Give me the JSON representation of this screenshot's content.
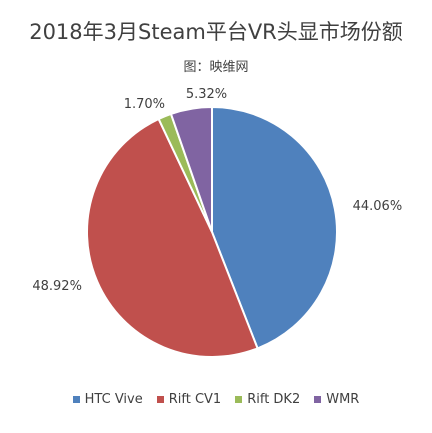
{
  "chart_data": {
    "type": "pie",
    "title": "2018年3月Steam平台VR头显市场份额",
    "subtitle": "图：映维网",
    "categories": [
      "HTC Vive",
      "Rift CV1",
      "Rift DK2",
      "WMR"
    ],
    "values": [
      44.06,
      48.92,
      1.7,
      5.32
    ],
    "labels": [
      "44.06%",
      "48.92%",
      "1.70%",
      "5.32%"
    ],
    "colors": [
      "#4f81bd",
      "#c0504d",
      "#9bbb59",
      "#8064a2"
    ],
    "legend_position": "bottom"
  }
}
